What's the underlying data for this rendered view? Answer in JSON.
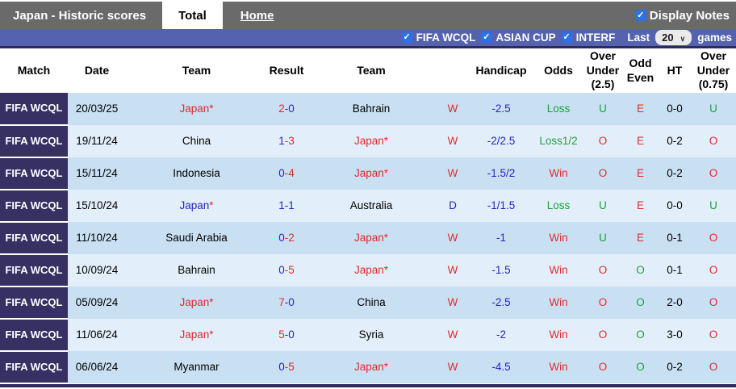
{
  "colors": {
    "red": "#e12b2e",
    "blue": "#2525c8",
    "green": "#1f9e3d",
    "topbar_gray": "#6a6a6a",
    "filterbar_blue": "#5562ad",
    "match_col_purple": "#363063",
    "row_dark": "#c9e0f3",
    "row_light": "#e2effa",
    "checkbox_blue": "#2e70e8"
  },
  "titlebar": {
    "title": "Japan - Historic scores",
    "tab_total": "Total",
    "tab_home": "Home",
    "display_notes_label": "Display Notes",
    "display_notes_checked": true
  },
  "filterbar": {
    "filters": [
      "FIFA WCQL",
      "ASIAN CUP",
      "INTERF"
    ],
    "filters_checked": [
      true,
      true,
      true
    ],
    "last_label": "Last",
    "games_count": "20",
    "games_label": "games"
  },
  "table": {
    "headers": [
      "Match",
      "Date",
      "Team",
      "Result",
      "Team",
      "",
      "Handicap",
      "Odds",
      "Over Under (2.5)",
      "Odd Even",
      "HT",
      "Over Under (0.75)"
    ],
    "rows": [
      {
        "match": "FIFA WCQL",
        "date": "20/03/25",
        "team1": [
          {
            "t": "Japan*",
            "c": "red"
          }
        ],
        "result": [
          {
            "t": "2",
            "c": "red"
          },
          {
            "t": "-0",
            "c": "blue"
          }
        ],
        "team2": [
          {
            "t": "Bahrain",
            "c": "black"
          }
        ],
        "wdl": [
          {
            "t": "W",
            "c": "red"
          }
        ],
        "handicap": [
          {
            "t": "-2.5",
            "c": "blue"
          }
        ],
        "odds": [
          {
            "t": "Loss",
            "c": "green"
          }
        ],
        "ou25": [
          {
            "t": "U",
            "c": "green"
          }
        ],
        "oddeven": [
          {
            "t": "E",
            "c": "red"
          }
        ],
        "ht": [
          {
            "t": "0-0",
            "c": "black"
          }
        ],
        "ou075": [
          {
            "t": "U",
            "c": "green"
          }
        ]
      },
      {
        "match": "FIFA WCQL",
        "date": "19/11/24",
        "team1": [
          {
            "t": "China",
            "c": "black"
          }
        ],
        "result": [
          {
            "t": "1",
            "c": "blue"
          },
          {
            "t": "-3",
            "c": "red"
          }
        ],
        "team2": [
          {
            "t": "Japan*",
            "c": "red"
          }
        ],
        "wdl": [
          {
            "t": "W",
            "c": "red"
          }
        ],
        "handicap": [
          {
            "t": "-2/2.5",
            "c": "blue"
          }
        ],
        "odds": [
          {
            "t": "Loss1/2",
            "c": "green"
          }
        ],
        "ou25": [
          {
            "t": "O",
            "c": "red"
          }
        ],
        "oddeven": [
          {
            "t": "E",
            "c": "red"
          }
        ],
        "ht": [
          {
            "t": "0-2",
            "c": "black"
          }
        ],
        "ou075": [
          {
            "t": "O",
            "c": "red"
          }
        ]
      },
      {
        "match": "FIFA WCQL",
        "date": "15/11/24",
        "team1": [
          {
            "t": "Indonesia",
            "c": "black"
          }
        ],
        "result": [
          {
            "t": "0",
            "c": "blue"
          },
          {
            "t": "-4",
            "c": "red"
          }
        ],
        "team2": [
          {
            "t": "Japan*",
            "c": "red"
          }
        ],
        "wdl": [
          {
            "t": "W",
            "c": "red"
          }
        ],
        "handicap": [
          {
            "t": "-1.5/2",
            "c": "blue"
          }
        ],
        "odds": [
          {
            "t": "Win",
            "c": "red"
          }
        ],
        "ou25": [
          {
            "t": "O",
            "c": "red"
          }
        ],
        "oddeven": [
          {
            "t": "E",
            "c": "red"
          }
        ],
        "ht": [
          {
            "t": "0-2",
            "c": "black"
          }
        ],
        "ou075": [
          {
            "t": "O",
            "c": "red"
          }
        ]
      },
      {
        "match": "FIFA WCQL",
        "date": "15/10/24",
        "team1": [
          {
            "t": "Japan",
            "c": "blue"
          },
          {
            "t": "*",
            "c": "red"
          }
        ],
        "result": [
          {
            "t": "1-1",
            "c": "blue"
          }
        ],
        "team2": [
          {
            "t": "Australia",
            "c": "black"
          }
        ],
        "wdl": [
          {
            "t": "D",
            "c": "blue"
          }
        ],
        "handicap": [
          {
            "t": "-1/1.5",
            "c": "blue"
          }
        ],
        "odds": [
          {
            "t": "Loss",
            "c": "green"
          }
        ],
        "ou25": [
          {
            "t": "U",
            "c": "green"
          }
        ],
        "oddeven": [
          {
            "t": "E",
            "c": "red"
          }
        ],
        "ht": [
          {
            "t": "0-0",
            "c": "black"
          }
        ],
        "ou075": [
          {
            "t": "U",
            "c": "green"
          }
        ]
      },
      {
        "match": "FIFA WCQL",
        "date": "11/10/24",
        "team1": [
          {
            "t": "Saudi Arabia",
            "c": "black"
          }
        ],
        "result": [
          {
            "t": "0",
            "c": "blue"
          },
          {
            "t": "-2",
            "c": "red"
          }
        ],
        "team2": [
          {
            "t": "Japan*",
            "c": "red"
          }
        ],
        "wdl": [
          {
            "t": "W",
            "c": "red"
          }
        ],
        "handicap": [
          {
            "t": "-1",
            "c": "blue"
          }
        ],
        "odds": [
          {
            "t": "Win",
            "c": "red"
          }
        ],
        "ou25": [
          {
            "t": "U",
            "c": "green"
          }
        ],
        "oddeven": [
          {
            "t": "E",
            "c": "red"
          }
        ],
        "ht": [
          {
            "t": "0-1",
            "c": "black"
          }
        ],
        "ou075": [
          {
            "t": "O",
            "c": "red"
          }
        ]
      },
      {
        "match": "FIFA WCQL",
        "date": "10/09/24",
        "team1": [
          {
            "t": "Bahrain",
            "c": "black"
          }
        ],
        "result": [
          {
            "t": "0",
            "c": "blue"
          },
          {
            "t": "-5",
            "c": "red"
          }
        ],
        "team2": [
          {
            "t": "Japan*",
            "c": "red"
          }
        ],
        "wdl": [
          {
            "t": "W",
            "c": "red"
          }
        ],
        "handicap": [
          {
            "t": "-1.5",
            "c": "blue"
          }
        ],
        "odds": [
          {
            "t": "Win",
            "c": "red"
          }
        ],
        "ou25": [
          {
            "t": "O",
            "c": "red"
          }
        ],
        "oddeven": [
          {
            "t": "O",
            "c": "green"
          }
        ],
        "ht": [
          {
            "t": "0-1",
            "c": "black"
          }
        ],
        "ou075": [
          {
            "t": "O",
            "c": "red"
          }
        ]
      },
      {
        "match": "FIFA WCQL",
        "date": "05/09/24",
        "team1": [
          {
            "t": "Japan*",
            "c": "red"
          }
        ],
        "result": [
          {
            "t": "7",
            "c": "red"
          },
          {
            "t": "-0",
            "c": "blue"
          }
        ],
        "team2": [
          {
            "t": "China",
            "c": "black"
          }
        ],
        "wdl": [
          {
            "t": "W",
            "c": "red"
          }
        ],
        "handicap": [
          {
            "t": "-2.5",
            "c": "blue"
          }
        ],
        "odds": [
          {
            "t": "Win",
            "c": "red"
          }
        ],
        "ou25": [
          {
            "t": "O",
            "c": "red"
          }
        ],
        "oddeven": [
          {
            "t": "O",
            "c": "green"
          }
        ],
        "ht": [
          {
            "t": "2-0",
            "c": "black"
          }
        ],
        "ou075": [
          {
            "t": "O",
            "c": "red"
          }
        ]
      },
      {
        "match": "FIFA WCQL",
        "date": "11/06/24",
        "team1": [
          {
            "t": "Japan*",
            "c": "red"
          }
        ],
        "result": [
          {
            "t": "5",
            "c": "red"
          },
          {
            "t": "-0",
            "c": "blue"
          }
        ],
        "team2": [
          {
            "t": "Syria",
            "c": "black"
          }
        ],
        "wdl": [
          {
            "t": "W",
            "c": "red"
          }
        ],
        "handicap": [
          {
            "t": "-2",
            "c": "blue"
          }
        ],
        "odds": [
          {
            "t": "Win",
            "c": "red"
          }
        ],
        "ou25": [
          {
            "t": "O",
            "c": "red"
          }
        ],
        "oddeven": [
          {
            "t": "O",
            "c": "green"
          }
        ],
        "ht": [
          {
            "t": "3-0",
            "c": "black"
          }
        ],
        "ou075": [
          {
            "t": "O",
            "c": "red"
          }
        ]
      },
      {
        "match": "FIFA WCQL",
        "date": "06/06/24",
        "team1": [
          {
            "t": "Myanmar",
            "c": "black"
          }
        ],
        "result": [
          {
            "t": "0",
            "c": "blue"
          },
          {
            "t": "-5",
            "c": "red"
          }
        ],
        "team2": [
          {
            "t": "Japan*",
            "c": "red"
          }
        ],
        "wdl": [
          {
            "t": "W",
            "c": "red"
          }
        ],
        "handicap": [
          {
            "t": "-4.5",
            "c": "blue"
          }
        ],
        "odds": [
          {
            "t": "Win",
            "c": "red"
          }
        ],
        "ou25": [
          {
            "t": "O",
            "c": "red"
          }
        ],
        "oddeven": [
          {
            "t": "O",
            "c": "green"
          }
        ],
        "ht": [
          {
            "t": "0-2",
            "c": "black"
          }
        ],
        "ou075": [
          {
            "t": "O",
            "c": "red"
          }
        ]
      }
    ]
  }
}
